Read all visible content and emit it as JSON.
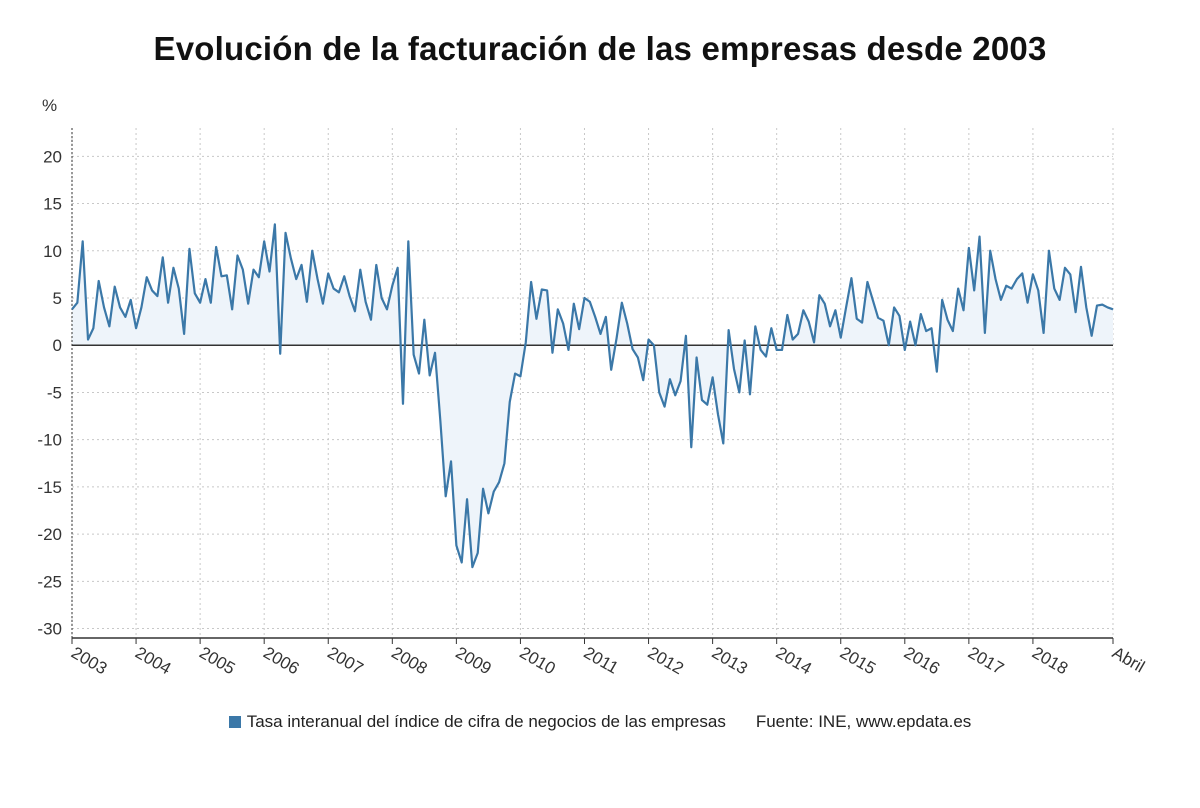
{
  "chart_data": {
    "type": "area",
    "title": "Evolución de la facturación de las empresas desde 2003",
    "ylabel": "%",
    "ylim": [
      -31,
      23
    ],
    "y_ticks": [
      20,
      15,
      10,
      5,
      0,
      -5,
      -10,
      -15,
      -20,
      -25,
      -30
    ],
    "x_tick_labels": [
      "2003",
      "2004",
      "2005",
      "2006",
      "2007",
      "2008",
      "2009",
      "2010",
      "2011",
      "2012",
      "2013",
      "2014",
      "2015",
      "2016",
      "2017",
      "2018",
      "Abril"
    ],
    "grid": true,
    "legend_position": "bottom",
    "series": [
      {
        "name": "Tasa interanual del índice de cifra de negocios de las empresas",
        "color": "#3b78a8",
        "fill": "#eef4fa",
        "start": "2003-01",
        "end": "2019-04",
        "values": [
          3.8,
          4.5,
          11.0,
          0.6,
          1.8,
          6.8,
          4.0,
          2.0,
          6.2,
          4.0,
          3.0,
          4.8,
          1.8,
          4.0,
          7.2,
          5.8,
          5.2,
          9.3,
          4.5,
          8.2,
          6.0,
          1.2,
          10.2,
          5.5,
          4.5,
          7.0,
          4.5,
          10.4,
          7.3,
          7.4,
          3.8,
          9.5,
          8.0,
          4.4,
          8.0,
          7.2,
          11.0,
          7.8,
          12.8,
          -0.9,
          11.9,
          9.2,
          7.0,
          8.5,
          4.6,
          10.0,
          7.0,
          4.4,
          7.6,
          6.0,
          5.6,
          7.3,
          5.2,
          3.6,
          8.0,
          4.6,
          2.7,
          8.5,
          5.0,
          3.8,
          6.3,
          8.2,
          -6.2,
          11.0,
          -1.0,
          -3.0,
          2.7,
          -3.2,
          -0.8,
          -8.0,
          -16.0,
          -12.3,
          -21.2,
          -23.0,
          -16.3,
          -23.5,
          -22.0,
          -15.2,
          -17.8,
          -15.5,
          -14.5,
          -12.5,
          -6.0,
          -3.0,
          -3.3,
          0.3,
          6.7,
          2.8,
          5.9,
          5.8,
          -0.8,
          3.8,
          2.3,
          -0.5,
          4.4,
          1.7,
          5.0,
          4.6,
          3.0,
          1.2,
          3.0,
          -2.6,
          0.7,
          4.5,
          2.3,
          -0.4,
          -1.3,
          -3.7,
          0.6,
          0.0,
          -5.0,
          -6.5,
          -3.6,
          -5.3,
          -3.8,
          1.0,
          -10.8,
          -1.3,
          -5.8,
          -6.3,
          -3.4,
          -7.3,
          -10.4,
          1.6,
          -2.5,
          -5.0,
          0.5,
          -5.2,
          2.0,
          -0.5,
          -1.2,
          1.8,
          -0.5,
          -0.5,
          3.2,
          0.6,
          1.2,
          3.7,
          2.5,
          0.3,
          5.3,
          4.4,
          2.0,
          3.7,
          0.8,
          4.0,
          7.1,
          2.8,
          2.4,
          6.7,
          4.8,
          2.9,
          2.6,
          0.0,
          4.0,
          3.1,
          -0.5,
          2.5,
          0.0,
          3.3,
          1.5,
          1.8,
          -2.8,
          4.8,
          2.7,
          1.5,
          6.0,
          3.7,
          10.3,
          5.8,
          11.5,
          1.3,
          10.0,
          7.0,
          4.8,
          6.3,
          6.0,
          7.0,
          7.6,
          4.5,
          7.5,
          5.8,
          1.3,
          10.0,
          6.0,
          4.8,
          8.2,
          7.5,
          3.5,
          8.3,
          4.0,
          1.0,
          4.2,
          4.3,
          4.0,
          3.8
        ]
      }
    ]
  },
  "legend": {
    "series_label": "Tasa interanual del índice de cifra de negocios de las empresas",
    "source": "Fuente: INE, www.epdata.es"
  }
}
